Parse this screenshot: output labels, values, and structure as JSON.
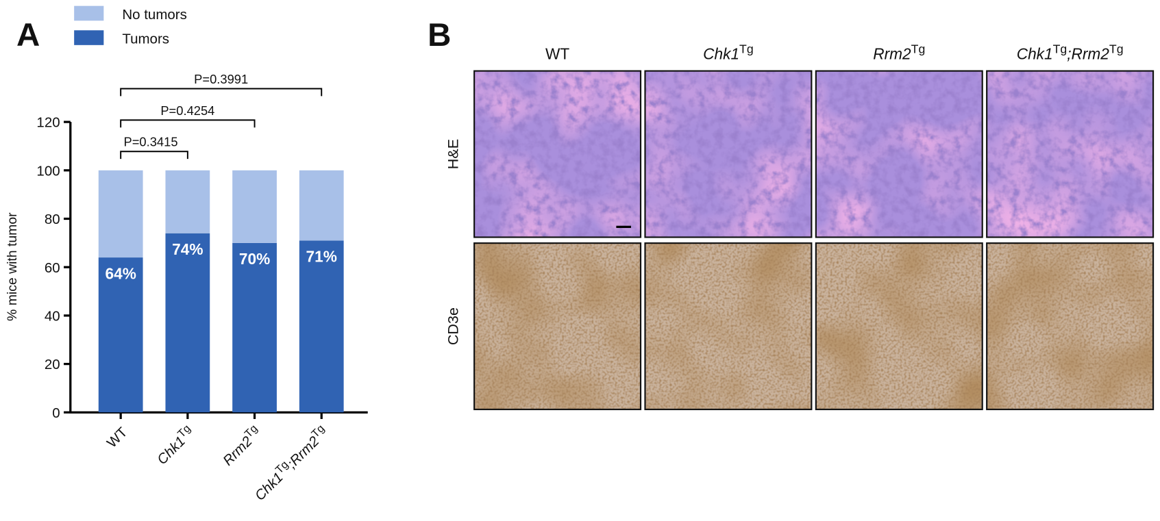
{
  "panel_a": {
    "label": "A"
  },
  "chart_data": {
    "type": "stacked_bar",
    "ylabel": "% mice with tumor",
    "categories": [
      [
        {
          "text": "WT",
          "style": "normal"
        }
      ],
      [
        {
          "text": "Chk1",
          "style": "italic"
        },
        {
          "text": "Tg",
          "style": "sup"
        }
      ],
      [
        {
          "text": "Rrm2",
          "style": "italic"
        },
        {
          "text": "Tg",
          "style": "sup"
        }
      ],
      [
        {
          "text": "Chk1",
          "style": "italic"
        },
        {
          "text": "Tg",
          "style": "sup"
        },
        {
          "text": ";",
          "style": "italic"
        },
        {
          "text": "Rrm2",
          "style": "italic"
        },
        {
          "text": "Tg",
          "style": "sup"
        }
      ]
    ],
    "series": [
      {
        "name": "Tumors",
        "color": "#3063b3",
        "values": [
          64,
          74,
          70,
          71
        ],
        "value_labels": [
          "64%",
          "74%",
          "70%",
          "71%"
        ]
      },
      {
        "name": "No tumors",
        "color": "#a8c0e8",
        "values": [
          36,
          26,
          30,
          29
        ]
      }
    ],
    "ylim": [
      0,
      120
    ],
    "yticks": [
      0,
      20,
      40,
      60,
      80,
      100,
      120
    ],
    "annotations": [
      {
        "from": 0,
        "to": 1,
        "label": "P=0.3415"
      },
      {
        "from": 0,
        "to": 2,
        "label": "P=0.4254"
      },
      {
        "from": 0,
        "to": 3,
        "label": "P=0.3991"
      }
    ],
    "legend": "top-left"
  },
  "panel_b": {
    "label": "B",
    "columns": [
      [
        {
          "text": "WT",
          "style": "normal"
        }
      ],
      [
        {
          "text": "Chk1",
          "style": "italic"
        },
        {
          "text": "Tg",
          "style": "sup"
        }
      ],
      [
        {
          "text": "Rrm2",
          "style": "italic"
        },
        {
          "text": "Tg",
          "style": "sup"
        }
      ],
      [
        {
          "text": "Chk1",
          "style": "italic"
        },
        {
          "text": "Tg",
          "style": "sup"
        },
        {
          "text": ";",
          "style": "italic"
        },
        {
          "text": "Rrm2",
          "style": "italic"
        },
        {
          "text": "Tg",
          "style": "sup"
        }
      ]
    ],
    "rows": [
      "H&E",
      "CD3e"
    ]
  }
}
